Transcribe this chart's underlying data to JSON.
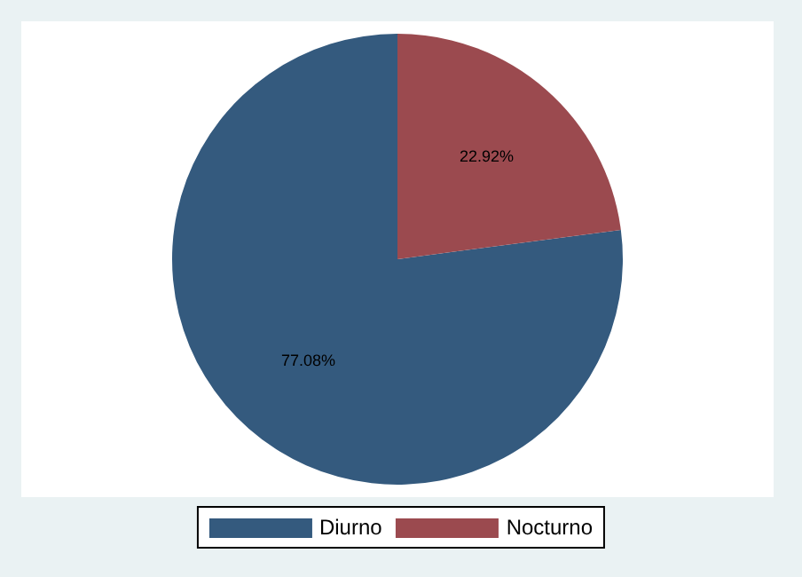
{
  "chart_data": {
    "type": "pie",
    "categories": [
      "Diurno",
      "Nocturno"
    ],
    "values": [
      77.08,
      22.92
    ],
    "colors": [
      "#345a7e",
      "#9b4a4f"
    ],
    "value_labels": [
      "77.08%",
      "22.92%"
    ],
    "legend": "bottom"
  }
}
